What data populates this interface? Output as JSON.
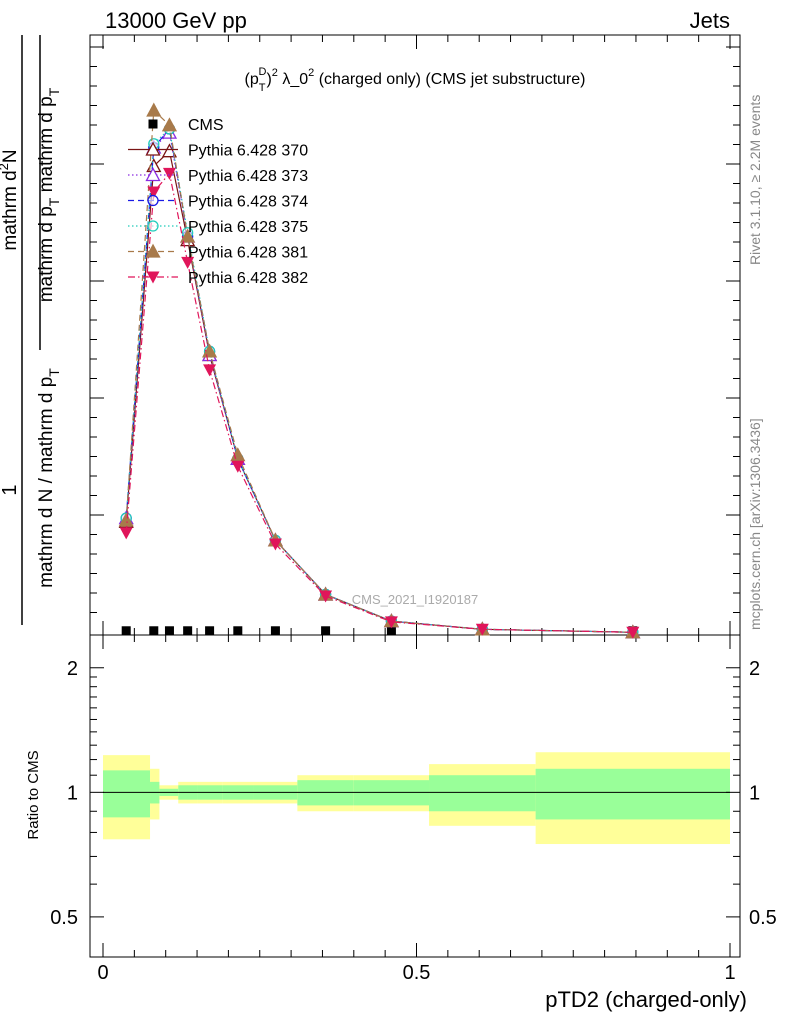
{
  "header": {
    "left": "13000 GeV pp",
    "right": "Jets"
  },
  "side": {
    "rivet": "Rivet 3.1.10, ≥ 2.2M events",
    "mcplots": "mcplots.cern.ch [arXiv:1306.3436]"
  },
  "chart_data": {
    "type": "line",
    "title": "(p_T^D)^2 λ_0^2 (charged only) (CMS jet substructure)",
    "watermark": "CMS_2021_I1920187",
    "xlabel": "pTD2 (charged-only)",
    "ylabel_upper": "1 / mathrm d N / mathrm d p_T mathrm d^2N / mathrm d p_T mathrm d λ",
    "ylabel_lower": "Ratio to CMS",
    "xlim": [
      0,
      1
    ],
    "x_ticks": [
      "0",
      "0.5",
      "1"
    ],
    "ratio_ylim": [
      0.4,
      2.4
    ],
    "ratio_ticks": [
      "0.5",
      "1",
      "2"
    ],
    "log_y_ratio": true,
    "upper_ymax": 8.0,
    "x": [
      0.037,
      0.081,
      0.106,
      0.135,
      0.17,
      0.215,
      0.275,
      0.355,
      0.46,
      0.605,
      0.845
    ],
    "bin_edges": [
      0.0,
      0.075,
      0.09,
      0.12,
      0.15,
      0.19,
      0.24,
      0.31,
      0.4,
      0.52,
      0.69,
      1.0
    ],
    "series": [
      {
        "name": "CMS",
        "color": "#000000",
        "marker": "square",
        "dash": "solid",
        "values": [
          0.03,
          0.03,
          0.03,
          0.03,
          0.03,
          0.03,
          0.03,
          0.03,
          0.03,
          0.03,
          0.03
        ]
      },
      {
        "name": "Pythia 6.428 370",
        "color": "#7a1414",
        "marker": "triangle-open",
        "dash": "solid",
        "values": [
          1.5,
          6.3,
          6.5,
          5.3,
          3.75,
          2.35,
          1.25,
          0.52,
          0.16,
          0.05,
          0.01
        ]
      },
      {
        "name": "Pythia 6.428 373",
        "color": "#8a2be2",
        "marker": "triangle-open",
        "dash": "dotted",
        "values": [
          1.55,
          6.55,
          6.75,
          5.35,
          3.75,
          2.35,
          1.25,
          0.52,
          0.16,
          0.05,
          0.01
        ]
      },
      {
        "name": "Pythia 6.428 374",
        "color": "#1a1ae6",
        "marker": "circle-open",
        "dash": "dashed",
        "values": [
          1.55,
          6.55,
          6.8,
          5.35,
          3.8,
          2.35,
          1.25,
          0.52,
          0.16,
          0.05,
          0.01
        ]
      },
      {
        "name": "Pythia 6.428 375",
        "color": "#22ccbb",
        "marker": "circle-open",
        "dash": "dotted",
        "values": [
          1.55,
          6.6,
          6.8,
          5.4,
          3.8,
          2.35,
          1.25,
          0.52,
          0.16,
          0.05,
          0.01
        ]
      },
      {
        "name": "Pythia 6.428 381",
        "color": "#a87a4a",
        "marker": "triangle",
        "dash": "dashed",
        "values": [
          1.52,
          7.05,
          6.85,
          5.35,
          3.8,
          2.4,
          1.25,
          0.52,
          0.16,
          0.05,
          0.01
        ]
      },
      {
        "name": "Pythia 6.428 382",
        "color": "#e0155a",
        "marker": "triangle-down",
        "dash": "dashdot",
        "values": [
          1.35,
          5.95,
          6.2,
          5.0,
          3.55,
          2.25,
          1.2,
          0.5,
          0.15,
          0.05,
          0.01
        ]
      }
    ],
    "ratio_bands": {
      "stat": [
        0.13,
        0.06,
        0.02,
        0.04,
        0.04,
        0.04,
        0.04,
        0.07,
        0.07,
        0.1,
        0.14
      ],
      "total": [
        0.23,
        0.14,
        0.04,
        0.06,
        0.06,
        0.06,
        0.06,
        0.1,
        0.1,
        0.17,
        0.25
      ],
      "stat_color": "#99ff99",
      "total_color": "#ffff99"
    },
    "legend_position": "top-left"
  }
}
